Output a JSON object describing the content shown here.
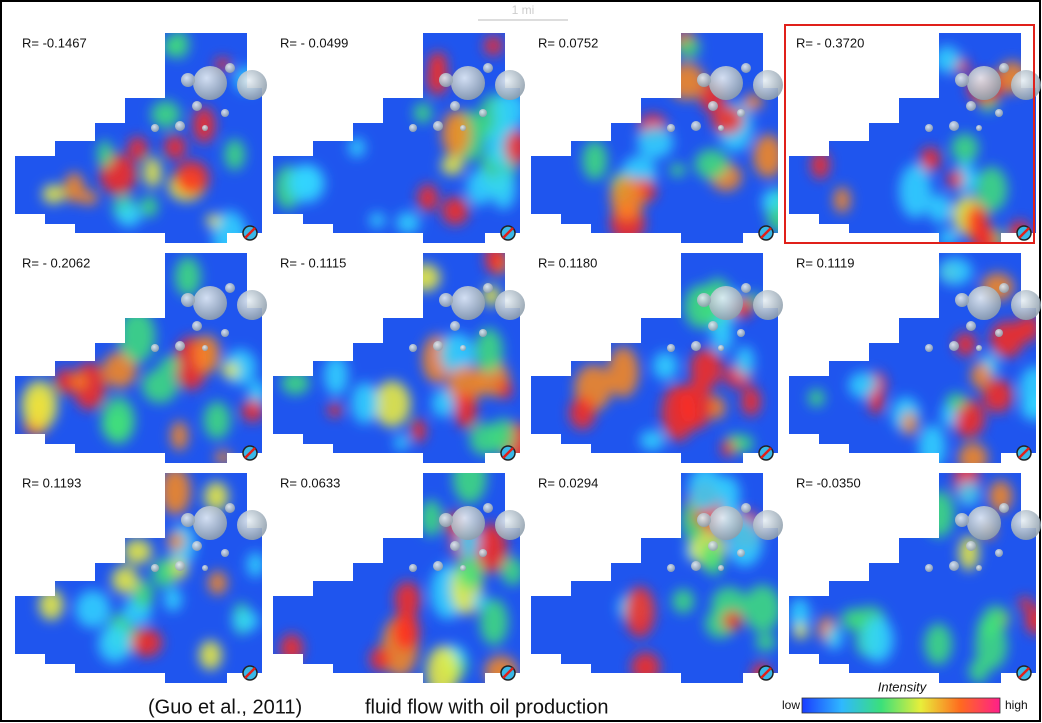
{
  "scale_bar": "1 mi",
  "panels": [
    {
      "label": "R= -0.1467"
    },
    {
      "label": "R= - 0.0499"
    },
    {
      "label": "R= 0.0752"
    },
    {
      "label": "R= - 0.3720"
    },
    {
      "label": "R= - 0.2062"
    },
    {
      "label": "R= - 0.1115"
    },
    {
      "label": "R= 0.1180"
    },
    {
      "label": "R= 0.1119"
    },
    {
      "label": "R= 0.1193"
    },
    {
      "label": "R= 0.0633"
    },
    {
      "label": "R= 0.0294"
    },
    {
      "label": "R= -0.0350"
    }
  ],
  "caption": {
    "citation": "(Guo et al., 2011)",
    "text": "fluid flow with oil production"
  },
  "colorbar": {
    "title": "Intensity",
    "low": "low",
    "high": "high"
  }
}
